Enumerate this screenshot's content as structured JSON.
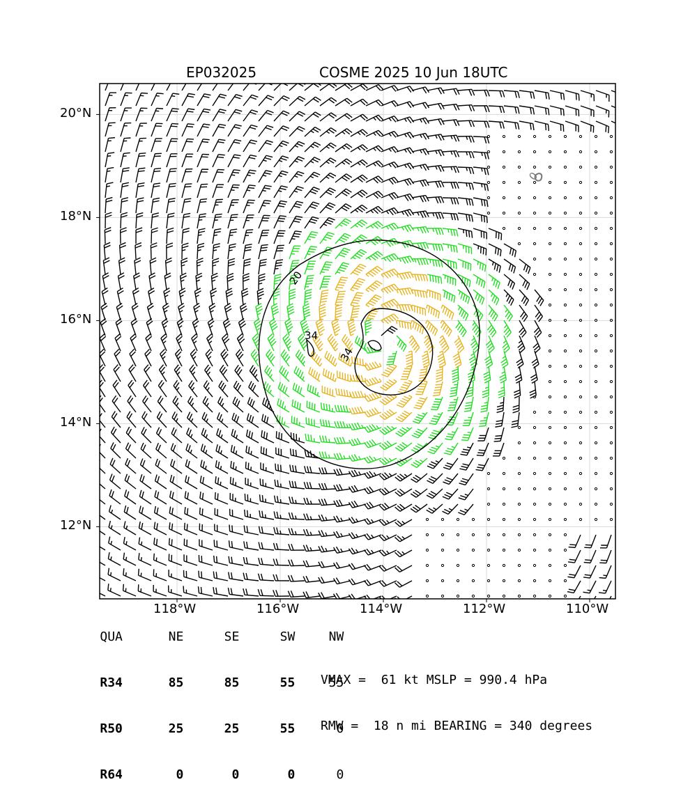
{
  "header": {
    "storm_id": "EP032025",
    "run_label": "COSME 2025 10 Jun 18UTC"
  },
  "map": {
    "lat_range": [
      10.6,
      20.6
    ],
    "lon_range": [
      -119.5,
      -109.5
    ],
    "lat_ticks": [
      {
        "value": 20,
        "label": "20°N"
      },
      {
        "value": 18,
        "label": "18°N"
      },
      {
        "value": 16,
        "label": "16°N"
      },
      {
        "value": 14,
        "label": "14°N"
      },
      {
        "value": 12,
        "label": "12°N"
      }
    ],
    "lon_ticks": [
      {
        "value": -118,
        "label": "118°W"
      },
      {
        "value": -116,
        "label": "116°W"
      },
      {
        "value": -114,
        "label": "114°W"
      },
      {
        "value": -112,
        "label": "112°W"
      },
      {
        "value": -110,
        "label": "110°W"
      }
    ],
    "grid": true,
    "storm_center": {
      "lat": 15.6,
      "lon": -114.0
    },
    "contours": [
      {
        "label": "20",
        "color": "#000000"
      },
      {
        "label": "34",
        "color": "#000000"
      },
      {
        "label": "34",
        "color": "#000000"
      },
      {
        "label": "0",
        "color": "#777777"
      }
    ],
    "barb_colors": {
      "below_34kt": "#000000",
      "34_to_50kt": "#22dd22",
      "50_to_64kt": "#e6b422",
      "calm_dot": "#000000"
    }
  },
  "table": {
    "headers": [
      "QUA",
      "NE",
      "SE",
      "SW",
      "NW"
    ],
    "rows": [
      {
        "label": "R34",
        "values": [
          "85",
          "85",
          "55",
          "55"
        ]
      },
      {
        "label": "R50",
        "values": [
          "25",
          "25",
          "55",
          "0"
        ]
      },
      {
        "label": "R64",
        "values": [
          "0",
          "0",
          "0",
          "0"
        ]
      }
    ]
  },
  "stats": {
    "line1": "VMAX =  61 kt MSLP = 990.4 hPa",
    "line2": "RMW =  18 n mi BEARING = 340 degrees"
  }
}
